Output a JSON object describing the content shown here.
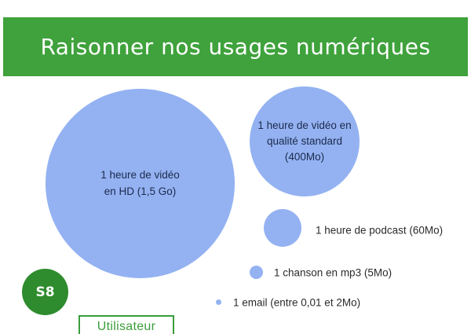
{
  "header": {
    "title": "Raisonner nos usages numériques"
  },
  "bubbles": {
    "video_hd": {
      "label": "1 heure de vidéo\nen HD (1,5 Go)"
    },
    "video_sd": {
      "label": "1 heure de vidéo en\nqualité standard\n(400Mo)"
    },
    "podcast": {
      "label": "1 heure de podcast (60Mo)"
    },
    "mp3": {
      "label": "1 chanson en mp3 (5Mo)"
    },
    "email": {
      "label": "1 email (entre 0,01 et 2Mo)"
    }
  },
  "badge": {
    "label": "S8"
  },
  "footer": {
    "label": "Utilisateur"
  },
  "colors": {
    "banner_green": "#3FA23C",
    "badge_green": "#2E8C2E",
    "outline_green": "#3B9E3B",
    "bubble_blue": "#94B2F2",
    "bubble_text": "#1B2A4C",
    "label_text": "#2B2B2E",
    "background": "#FFFFFF"
  },
  "chart_data": {
    "type": "bubble",
    "title": "Raisonner nos usages numériques",
    "items": [
      {
        "label": "1 heure de vidéo en HD",
        "size_label": "1,5 Go"
      },
      {
        "label": "1 heure de vidéo en qualité standard",
        "size_label": "400Mo"
      },
      {
        "label": "1 heure de podcast",
        "size_label": "60Mo"
      },
      {
        "label": "1 chanson en mp3",
        "size_label": "5Mo"
      },
      {
        "label": "1 email",
        "size_label": "entre 0,01 et 2Mo"
      }
    ]
  }
}
